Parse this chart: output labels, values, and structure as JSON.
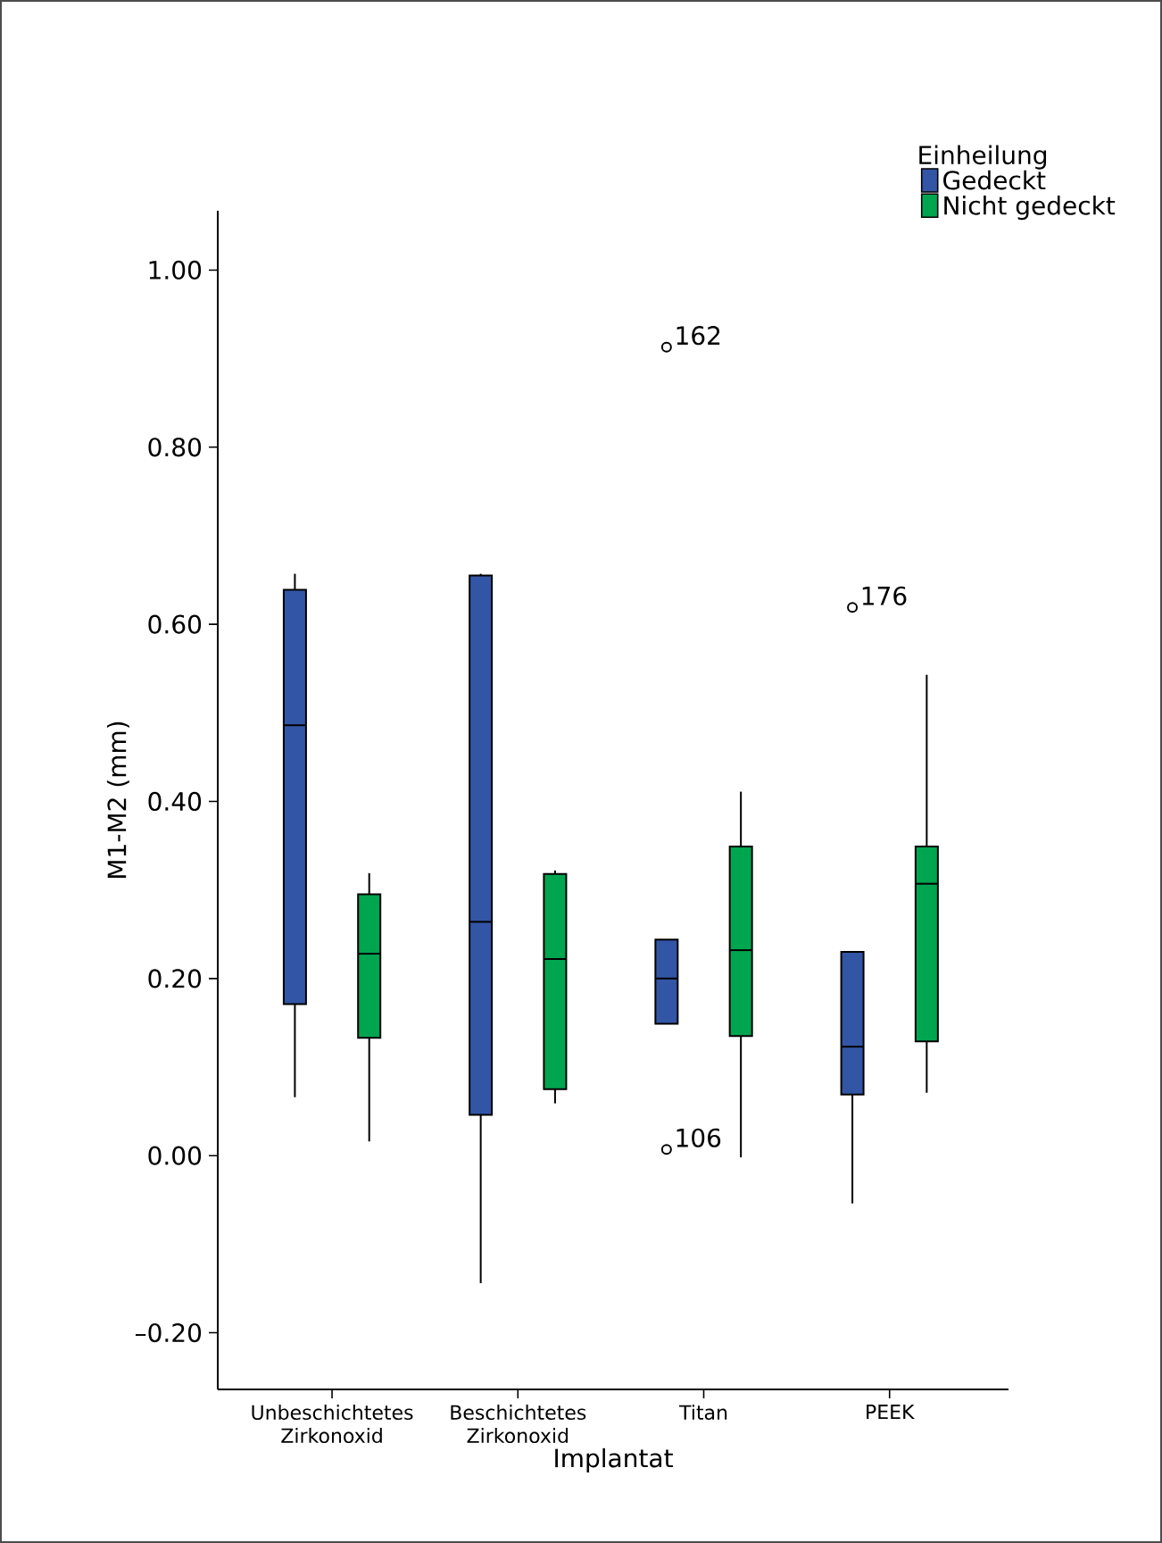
{
  "chart_data": {
    "type": "box",
    "xlabel": "Implantat",
    "ylabel": "M1-M2 (mm)",
    "legend_title": "Einheilung",
    "legend": "top right",
    "categories": [
      "Unbeschichtetes Zirkonoxid",
      "Beschichtetes Zirkonoxid",
      "Titan",
      "PEEK"
    ],
    "ylim": [
      -0.264,
      1.067
    ],
    "yticks": [
      {
        "value": -0.2,
        "label": "–0.20"
      },
      {
        "value": 0,
        "label": "0.00"
      },
      {
        "value": 0.2,
        "label": "0.20"
      },
      {
        "value": 0.4,
        "label": "0.40"
      },
      {
        "value": 0.6,
        "label": "0.60"
      },
      {
        "value": 0.8,
        "label": "0.80"
      },
      {
        "value": 1.0,
        "label": "1.00"
      }
    ],
    "series": [
      {
        "name": "Gedeckt",
        "color": "#3355a5",
        "boxes": [
          {
            "low": 0.066,
            "q1": 0.171,
            "median": 0.486,
            "q3": 0.639,
            "high": 0.657
          },
          {
            "low": -0.144,
            "q1": 0.046,
            "median": 0.264,
            "q3": 0.655,
            "high": 0.657
          },
          {
            "low": 0.149,
            "q1": 0.149,
            "median": 0.2,
            "q3": 0.244,
            "high": 0.244,
            "outliers": [
              0.007,
              0.913
            ]
          },
          {
            "low": -0.054,
            "q1": 0.069,
            "median": 0.123,
            "q3": 0.23,
            "high": 0.23,
            "outliers": [
              0.619
            ]
          }
        ]
      },
      {
        "name": "Nicht gedeckt",
        "color": "#00a550",
        "boxes": [
          {
            "low": 0.016,
            "q1": 0.133,
            "median": 0.228,
            "q3": 0.295,
            "high": 0.319
          },
          {
            "low": 0.059,
            "q1": 0.075,
            "median": 0.222,
            "q3": 0.318,
            "high": 0.322
          },
          {
            "low": -0.002,
            "q1": 0.135,
            "median": 0.232,
            "q3": 0.349,
            "high": 0.411
          },
          {
            "low": 0.071,
            "q1": 0.129,
            "median": 0.307,
            "q3": 0.349,
            "high": 0.543
          }
        ]
      }
    ],
    "annotations": [
      "106",
      "162",
      "176"
    ]
  }
}
